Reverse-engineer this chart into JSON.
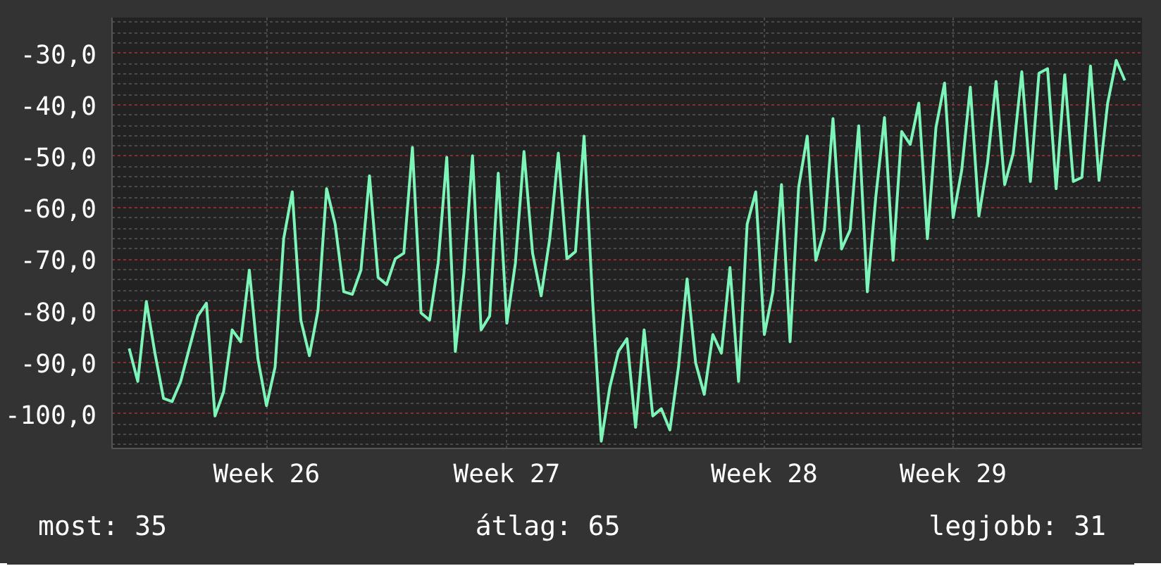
{
  "chart_data": {
    "type": "line",
    "categories": [
      null,
      null,
      null,
      null,
      null,
      null,
      null,
      null,
      null,
      null,
      null,
      null,
      null,
      null,
      null,
      null,
      "Week 26",
      null,
      null,
      null,
      null,
      null,
      null,
      null,
      null,
      null,
      null,
      null,
      null,
      null,
      null,
      null,
      null,
      null,
      null,
      null,
      null,
      null,
      null,
      null,
      null,
      null,
      null,
      null,
      "Week 27",
      null,
      null,
      null,
      null,
      null,
      null,
      null,
      null,
      null,
      null,
      null,
      null,
      null,
      null,
      null,
      null,
      null,
      null,
      null,
      null,
      null,
      null,
      null,
      null,
      null,
      null,
      null,
      null,
      null,
      "Week 28",
      null,
      null,
      null,
      null,
      null,
      null,
      null,
      null,
      null,
      null,
      null,
      null,
      null,
      null,
      null,
      null,
      null,
      null,
      null,
      null,
      null,
      "Week 29",
      null,
      null,
      null,
      null,
      null,
      null,
      null,
      null,
      null,
      null,
      null,
      null,
      null,
      null,
      null,
      null,
      null,
      null,
      null,
      null
    ],
    "series": [
      {
        "color": "#7ef5b8",
        "values": [
          -87.3,
          -93.7,
          -78.2,
          -88.2,
          -97.0,
          -97.6,
          -93.7,
          -87.3,
          -81.0,
          -78.5,
          -100.4,
          -95.7,
          -83.7,
          -86.0,
          -72.1,
          -89.3,
          -98.4,
          -90.9,
          -66.0,
          -56.9,
          -81.8,
          -88.7,
          -79.9,
          -56.3,
          -63.2,
          -76.3,
          -76.8,
          -72.1,
          -53.8,
          -73.5,
          -74.9,
          -69.9,
          -68.8,
          -48.3,
          -80.4,
          -81.8,
          -70.7,
          -50.2,
          -87.9,
          -72.7,
          -49.9,
          -83.7,
          -81.0,
          -53.3,
          -82.4,
          -70.7,
          -49.1,
          -68.8,
          -77.1,
          -66.0,
          -49.4,
          -69.9,
          -68.5,
          -46.1,
          -78.2,
          -105.3,
          -94.8,
          -87.9,
          -85.4,
          -102.6,
          -83.7,
          -100.4,
          -99.0,
          -103.1,
          -90.9,
          -73.8,
          -90.1,
          -96.2,
          -84.6,
          -88.2,
          -71.6,
          -93.7,
          -63.2,
          -56.9,
          -84.6,
          -76.3,
          -55.5,
          -86.0,
          -56.0,
          -46.1,
          -70.2,
          -64.3,
          -42.7,
          -68.0,
          -64.3,
          -44.1,
          -76.3,
          -57.7,
          -42.5,
          -70.2,
          -45.2,
          -47.7,
          -39.7,
          -66.0,
          -44.4,
          -35.8,
          -61.9,
          -52.7,
          -36.6,
          -61.6,
          -51.3,
          -35.5,
          -55.5,
          -49.4,
          -33.6,
          -54.9,
          -33.9,
          -33.0,
          -56.3,
          -34.2,
          -54.9,
          -54.1,
          -32.5,
          -54.7,
          -39.7,
          -31.4,
          -35.3
        ]
      }
    ],
    "ylim": [
      -106.7,
      -23.1
    ],
    "yticks": [
      {
        "value": -30,
        "label": "-30,0"
      },
      {
        "value": -40,
        "label": "-40,0"
      },
      {
        "value": -50,
        "label": "-50,0"
      },
      {
        "value": -60,
        "label": "-60,0"
      },
      {
        "value": -70,
        "label": "-70,0"
      },
      {
        "value": -80,
        "label": "-80,0"
      },
      {
        "value": -90,
        "label": "-90,0"
      },
      {
        "value": -100,
        "label": "-100,0"
      }
    ],
    "grid": true,
    "line_style": "solid",
    "annotations": [
      "most: 35",
      "átlag: 65",
      "legjobb: 31"
    ]
  }
}
